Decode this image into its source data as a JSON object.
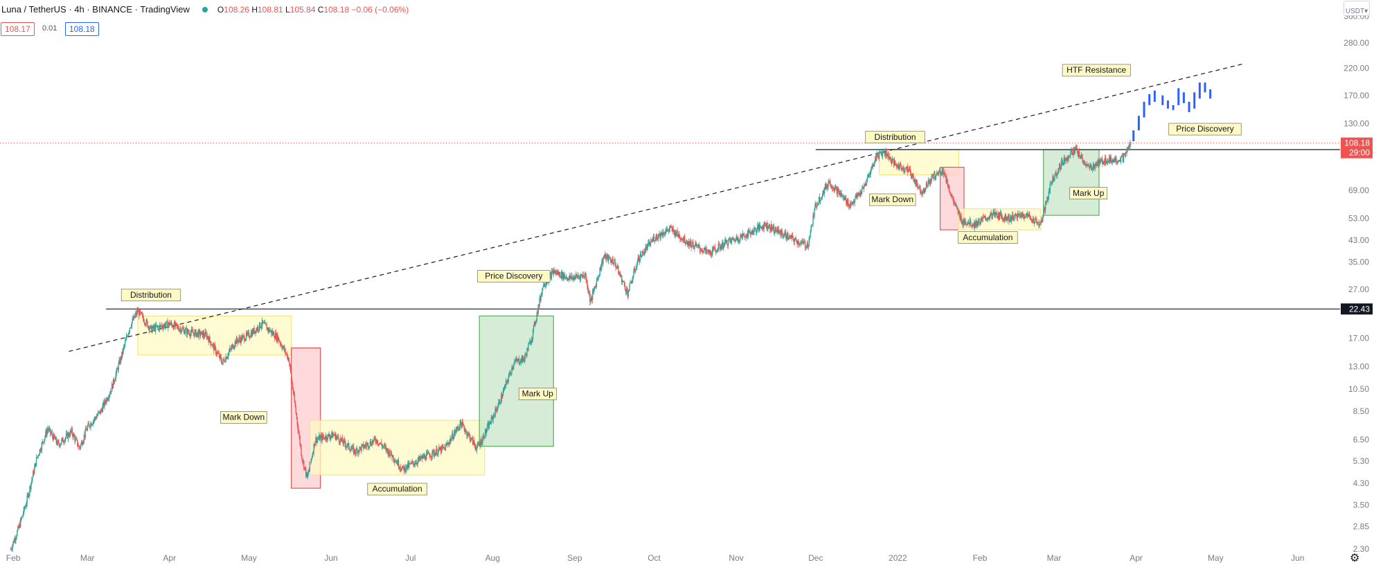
{
  "header": {
    "symbol": "Luna / TetherUS · 4h · BINANCE · TradingView",
    "open_label": "O",
    "open": "108.26",
    "high_label": "H",
    "high": "108.81",
    "low_label": "L",
    "low": "105.84",
    "close_label": "C",
    "close": "108.18 −0.06 (−0.06%)"
  },
  "price_boxes": {
    "bid": "108.17",
    "spread": "0.01",
    "ask": "108.18"
  },
  "axis_unit": "USDT",
  "colors": {
    "up": "#26a69a",
    "down": "#ef5350",
    "projection": "#2962ff",
    "distribution_fill": "#fff9c4",
    "accumulation_fill": "#fff9c4",
    "markup_fill": "#c8e6c9",
    "markdown_fill": "#ffcdd2"
  },
  "chart_data": {
    "type": "candlestick",
    "title": "",
    "xlabel": "",
    "ylabel": "",
    "y_scale": "log",
    "ylim": [
      2.2,
      420
    ],
    "x_range": [
      "2021-01-27",
      "2022-06-17"
    ],
    "grid": false,
    "x_tick_labels": [
      {
        "date": "2021-02-01",
        "label": "Feb"
      },
      {
        "date": "2021-03-01",
        "label": "Mar"
      },
      {
        "date": "2021-04-01",
        "label": "Apr"
      },
      {
        "date": "2021-05-01",
        "label": "May"
      },
      {
        "date": "2021-06-01",
        "label": "Jun"
      },
      {
        "date": "2021-07-01",
        "label": "Jul"
      },
      {
        "date": "2021-08-01",
        "label": "Aug"
      },
      {
        "date": "2021-09-01",
        "label": "Sep"
      },
      {
        "date": "2021-10-01",
        "label": "Oct"
      },
      {
        "date": "2021-11-01",
        "label": "Nov"
      },
      {
        "date": "2021-12-01",
        "label": "Dec"
      },
      {
        "date": "2022-01-01",
        "label": "2022"
      },
      {
        "date": "2022-02-01",
        "label": "Feb"
      },
      {
        "date": "2022-03-01",
        "label": "Mar"
      },
      {
        "date": "2022-04-01",
        "label": "Apr"
      },
      {
        "date": "2022-05-01",
        "label": "May"
      },
      {
        "date": "2022-06-01",
        "label": "Jun"
      }
    ],
    "y_tick_labels": [
      "360.00",
      "280.00",
      "220.00",
      "170.00",
      "130.00",
      "69.00",
      "53.00",
      "43.00",
      "35.00",
      "27.00",
      "17.00",
      "13.00",
      "10.50",
      "8.50",
      "6.50",
      "5.30",
      "4.30",
      "3.50",
      "2.85",
      "2.30"
    ],
    "price_path": [
      {
        "date": "2021-01-31",
        "price": 2.3
      },
      {
        "date": "2021-02-03",
        "price": 2.8
      },
      {
        "date": "2021-02-06",
        "price": 3.6
      },
      {
        "date": "2021-02-10",
        "price": 5.5
      },
      {
        "date": "2021-02-14",
        "price": 7.2
      },
      {
        "date": "2021-02-18",
        "price": 6.2
      },
      {
        "date": "2021-02-23",
        "price": 7.0
      },
      {
        "date": "2021-02-26",
        "price": 6.0
      },
      {
        "date": "2021-03-01",
        "price": 7.3
      },
      {
        "date": "2021-03-06",
        "price": 8.5
      },
      {
        "date": "2021-03-10",
        "price": 10.5
      },
      {
        "date": "2021-03-14",
        "price": 14.5
      },
      {
        "date": "2021-03-17",
        "price": 19.0
      },
      {
        "date": "2021-03-20",
        "price": 22.0
      },
      {
        "date": "2021-03-25",
        "price": 18.5
      },
      {
        "date": "2021-04-01",
        "price": 19.5
      },
      {
        "date": "2021-04-08",
        "price": 18.0
      },
      {
        "date": "2021-04-15",
        "price": 17.5
      },
      {
        "date": "2021-04-21",
        "price": 13.5
      },
      {
        "date": "2021-04-26",
        "price": 16.5
      },
      {
        "date": "2021-05-01",
        "price": 17.5
      },
      {
        "date": "2021-05-06",
        "price": 19.5
      },
      {
        "date": "2021-05-12",
        "price": 17.0
      },
      {
        "date": "2021-05-16",
        "price": 14.0
      },
      {
        "date": "2021-05-19",
        "price": 8.0
      },
      {
        "date": "2021-05-21",
        "price": 5.5
      },
      {
        "date": "2021-05-23",
        "price": 4.5
      },
      {
        "date": "2021-05-26",
        "price": 6.5
      },
      {
        "date": "2021-06-02",
        "price": 6.8
      },
      {
        "date": "2021-06-10",
        "price": 5.8
      },
      {
        "date": "2021-06-18",
        "price": 6.5
      },
      {
        "date": "2021-06-24",
        "price": 5.6
      },
      {
        "date": "2021-06-28",
        "price": 4.9
      },
      {
        "date": "2021-07-06",
        "price": 5.5
      },
      {
        "date": "2021-07-14",
        "price": 6.0
      },
      {
        "date": "2021-07-20",
        "price": 7.6
      },
      {
        "date": "2021-07-26",
        "price": 6.0
      },
      {
        "date": "2021-07-28",
        "price": 6.5
      },
      {
        "date": "2021-08-01",
        "price": 8.0
      },
      {
        "date": "2021-08-04",
        "price": 9.5
      },
      {
        "date": "2021-08-09",
        "price": 13.5
      },
      {
        "date": "2021-08-13",
        "price": 14.0
      },
      {
        "date": "2021-08-16",
        "price": 17.5
      },
      {
        "date": "2021-08-20",
        "price": 28.0
      },
      {
        "date": "2021-08-24",
        "price": 32.0
      },
      {
        "date": "2021-08-30",
        "price": 30.0
      },
      {
        "date": "2021-09-05",
        "price": 31.0
      },
      {
        "date": "2021-09-07",
        "price": 24.0
      },
      {
        "date": "2021-09-12",
        "price": 37.0
      },
      {
        "date": "2021-09-16",
        "price": 35.0
      },
      {
        "date": "2021-09-21",
        "price": 26.0
      },
      {
        "date": "2021-09-25",
        "price": 36.0
      },
      {
        "date": "2021-10-01",
        "price": 44.0
      },
      {
        "date": "2021-10-07",
        "price": 48.0
      },
      {
        "date": "2021-10-14",
        "price": 42.0
      },
      {
        "date": "2021-10-22",
        "price": 38.0
      },
      {
        "date": "2021-10-28",
        "price": 42.0
      },
      {
        "date": "2021-11-04",
        "price": 45.0
      },
      {
        "date": "2021-11-12",
        "price": 50.0
      },
      {
        "date": "2021-11-18",
        "price": 46.0
      },
      {
        "date": "2021-11-25",
        "price": 42.0
      },
      {
        "date": "2021-11-28",
        "price": 41.0
      },
      {
        "date": "2021-12-01",
        "price": 60.0
      },
      {
        "date": "2021-12-06",
        "price": 75.0
      },
      {
        "date": "2021-12-10",
        "price": 67.0
      },
      {
        "date": "2021-12-14",
        "price": 60.0
      },
      {
        "date": "2021-12-19",
        "price": 70.0
      },
      {
        "date": "2021-12-24",
        "price": 96.0
      },
      {
        "date": "2021-12-27",
        "price": 100.0
      },
      {
        "date": "2021-12-31",
        "price": 88.0
      },
      {
        "date": "2022-01-05",
        "price": 84.0
      },
      {
        "date": "2022-01-10",
        "price": 68.0
      },
      {
        "date": "2022-01-14",
        "price": 78.0
      },
      {
        "date": "2022-01-18",
        "price": 84.0
      },
      {
        "date": "2022-01-22",
        "price": 62.0
      },
      {
        "date": "2022-01-25",
        "price": 52.0
      },
      {
        "date": "2022-01-30",
        "price": 50.0
      },
      {
        "date": "2022-02-06",
        "price": 55.0
      },
      {
        "date": "2022-02-12",
        "price": 53.0
      },
      {
        "date": "2022-02-18",
        "price": 55.0
      },
      {
        "date": "2022-02-24",
        "price": 50.0
      },
      {
        "date": "2022-02-28",
        "price": 75.0
      },
      {
        "date": "2022-03-04",
        "price": 90.0
      },
      {
        "date": "2022-03-09",
        "price": 102.0
      },
      {
        "date": "2022-03-14",
        "price": 85.0
      },
      {
        "date": "2022-03-20",
        "price": 92.0
      },
      {
        "date": "2022-03-27",
        "price": 93.0
      },
      {
        "date": "2022-03-30",
        "price": 108.0
      }
    ],
    "projection": [
      {
        "date": "2022-03-31",
        "open": 110,
        "close": 122
      },
      {
        "date": "2022-04-02",
        "open": 122,
        "close": 140
      },
      {
        "date": "2022-04-04",
        "open": 138,
        "close": 160
      },
      {
        "date": "2022-04-06",
        "open": 155,
        "close": 172
      },
      {
        "date": "2022-04-08",
        "open": 160,
        "close": 178
      },
      {
        "date": "2022-04-11",
        "open": 170,
        "close": 155
      },
      {
        "date": "2022-04-13",
        "open": 162,
        "close": 150
      },
      {
        "date": "2022-04-15",
        "open": 155,
        "close": 148
      },
      {
        "date": "2022-04-17",
        "open": 155,
        "close": 182
      },
      {
        "date": "2022-04-19",
        "open": 175,
        "close": 158
      },
      {
        "date": "2022-04-21",
        "open": 160,
        "close": 145
      },
      {
        "date": "2022-04-23",
        "open": 150,
        "close": 175
      },
      {
        "date": "2022-04-25",
        "open": 165,
        "close": 192
      },
      {
        "date": "2022-04-27",
        "open": 175,
        "close": 192
      },
      {
        "date": "2022-04-29",
        "open": 180,
        "close": 165
      }
    ],
    "horizontal_levels": [
      {
        "price": 22.43,
        "label": "22.43",
        "from": "2021-03-08"
      },
      {
        "price": 101.63,
        "label": "101.63",
        "from": "2021-12-01"
      }
    ],
    "current_price": {
      "price": 108.18,
      "label": "108.18",
      "countdown": "29:00"
    },
    "trendline": {
      "start": {
        "date": "2021-02-22",
        "price": 15.0
      },
      "end": {
        "date": "2022-05-12",
        "price": 230.0
      }
    },
    "zones": [
      {
        "type": "distribution",
        "x0": "2021-03-20",
        "x1": "2021-05-17",
        "y0": 14.5,
        "y1": 21.0
      },
      {
        "type": "markdown",
        "x0": "2021-05-17",
        "x1": "2021-05-28",
        "y0": 4.1,
        "y1": 15.5
      },
      {
        "type": "accumulation",
        "x0": "2021-05-24",
        "x1": "2021-07-29",
        "y0": 4.65,
        "y1": 7.8
      },
      {
        "type": "markup",
        "x0": "2021-07-27",
        "x1": "2021-08-24",
        "y0": 6.1,
        "y1": 21.0
      },
      {
        "type": "distribution",
        "x0": "2021-12-25",
        "x1": "2022-01-24",
        "y0": 80.0,
        "y1": 102.0
      },
      {
        "type": "markdown",
        "x0": "2022-01-17",
        "x1": "2022-01-26",
        "y0": 47.5,
        "y1": 86.0
      },
      {
        "type": "accumulation",
        "x0": "2022-01-24",
        "x1": "2022-02-24",
        "y0": 47.5,
        "y1": 58.0
      },
      {
        "type": "markup",
        "x0": "2022-02-25",
        "x1": "2022-03-18",
        "y0": 54.5,
        "y1": 101.63
      }
    ],
    "annotations": [
      {
        "text": "Distribution",
        "date": "2021-03-25",
        "price": 25.5
      },
      {
        "text": "Mark Down",
        "date": "2021-04-29",
        "price": 8.0
      },
      {
        "text": "Accumulation",
        "date": "2021-06-26",
        "price": 4.05
      },
      {
        "text": "Price Discovery",
        "date": "2021-08-09",
        "price": 30.5
      },
      {
        "text": "Mark Up",
        "date": "2021-08-18",
        "price": 10.0
      },
      {
        "text": "Distribution",
        "date": "2021-12-31",
        "price": 114.0
      },
      {
        "text": "Mark Down",
        "date": "2021-12-30",
        "price": 63.0
      },
      {
        "text": "Accumulation",
        "date": "2022-02-04",
        "price": 44.0
      },
      {
        "text": "Mark Up",
        "date": "2022-03-14",
        "price": 67.0
      },
      {
        "text": "HTF Resistance",
        "date": "2022-03-17",
        "price": 215.0
      },
      {
        "text": "Price Discovery",
        "date": "2022-04-27",
        "price": 123.0
      }
    ]
  }
}
